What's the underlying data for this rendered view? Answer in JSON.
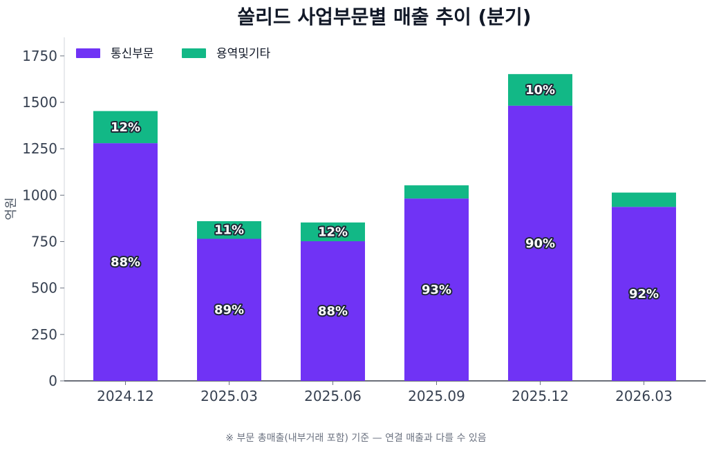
{
  "chart_data": {
    "type": "bar",
    "stacked": true,
    "title": "쏠리드 사업부문별 매출 추이 (분기)",
    "ylabel": "억원",
    "xlabel": "",
    "categories": [
      "2024.12",
      "2025.03",
      "2025.06",
      "2025.09",
      "2025.12",
      "2026.03"
    ],
    "ylim": [
      0,
      1850
    ],
    "yticks": [
      0,
      250,
      500,
      750,
      1000,
      1250,
      1500,
      1750
    ],
    "legend_position": "top-left",
    "grid": false,
    "series": [
      {
        "name": "통신부문",
        "color": "#7033f5",
        "values": [
          1280,
          765,
          752,
          982,
          1482,
          937
        ],
        "labels": [
          "88%",
          "89%",
          "88%",
          "93%",
          "90%",
          "92%"
        ]
      },
      {
        "name": "용역및기타",
        "color": "#12b886",
        "values": [
          173,
          95,
          101,
          71,
          170,
          77
        ],
        "labels": [
          "12%",
          "11%",
          "12%",
          "",
          "10%",
          ""
        ]
      }
    ],
    "footnote": "※ 부문 총매출(내부거래 포함) 기준 — 연결 매출과 다를 수 있음"
  }
}
